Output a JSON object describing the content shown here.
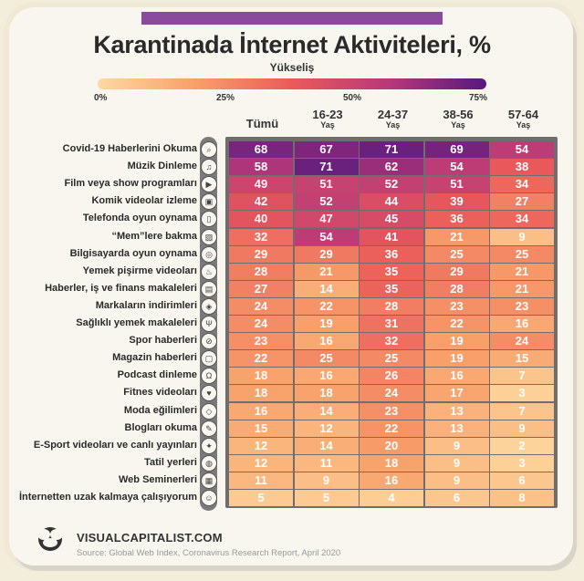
{
  "chart_data": {
    "type": "heatmap",
    "title": "Karantinada İnternet Aktiviteleri, %",
    "legend": {
      "title": "Yükseliş",
      "ticks": [
        "0%",
        "25%",
        "50%",
        "75%"
      ],
      "range": [
        0,
        75
      ],
      "colors": [
        "#fdd9a0",
        "#f8a06a",
        "#ea5a5a",
        "#b8387a",
        "#55197e"
      ]
    },
    "columns": [
      {
        "label": "Tümü",
        "sub": ""
      },
      {
        "label": "16-23",
        "sub": "Yaş"
      },
      {
        "label": "24-37",
        "sub": "Yaş"
      },
      {
        "label": "38-56",
        "sub": "Yaş"
      },
      {
        "label": "57-64",
        "sub": "Yaş"
      }
    ],
    "rows": [
      {
        "label": "Covid-19 Haberlerini Okuma",
        "icon": "search-icon",
        "values": [
          68,
          67,
          71,
          69,
          54
        ]
      },
      {
        "label": "Müzik Dinleme",
        "icon": "music-icon",
        "values": [
          58,
          71,
          62,
          54,
          38
        ]
      },
      {
        "label": "Film veya show programları",
        "icon": "play-icon",
        "values": [
          49,
          51,
          52,
          51,
          34
        ]
      },
      {
        "label": "Komik videolar izleme",
        "icon": "video-icon",
        "values": [
          42,
          52,
          44,
          39,
          27
        ]
      },
      {
        "label": "Telefonda oyun oynama",
        "icon": "phone-game-icon",
        "values": [
          40,
          47,
          45,
          36,
          34
        ]
      },
      {
        "label": "“Mem”lere bakma",
        "icon": "image-icon",
        "values": [
          32,
          54,
          41,
          21,
          9
        ]
      },
      {
        "label": "Bilgisayarda oyun oynama",
        "icon": "mouse-icon",
        "values": [
          29,
          29,
          36,
          25,
          25
        ]
      },
      {
        "label": "Yemek pişirme videoları",
        "icon": "chef-icon",
        "values": [
          28,
          21,
          35,
          29,
          21
        ]
      },
      {
        "label": "Haberler, iş ve finans makaleleri",
        "icon": "newspaper-icon",
        "values": [
          27,
          14,
          35,
          28,
          21
        ]
      },
      {
        "label": "Markaların indirimleri",
        "icon": "tag-icon",
        "values": [
          24,
          22,
          28,
          23,
          23
        ]
      },
      {
        "label": "Sağlıklı yemek makaleleri",
        "icon": "cutlery-icon",
        "values": [
          24,
          19,
          31,
          22,
          16
        ]
      },
      {
        "label": "Spor haberleri",
        "icon": "ball-icon",
        "values": [
          23,
          16,
          32,
          19,
          24
        ]
      },
      {
        "label": "Magazin haberleri",
        "icon": "magazine-icon",
        "values": [
          22,
          25,
          25,
          19,
          15
        ]
      },
      {
        "label": "Podcast dinleme",
        "icon": "headphones-icon",
        "values": [
          18,
          16,
          26,
          16,
          7
        ]
      },
      {
        "label": "Fitnes videoları",
        "icon": "fitness-icon",
        "values": [
          18,
          18,
          24,
          17,
          3
        ]
      },
      {
        "label": "Moda eğilimleri",
        "icon": "fashion-icon",
        "values": [
          16,
          14,
          23,
          13,
          7
        ]
      },
      {
        "label": "Blogları okuma",
        "icon": "blog-icon",
        "values": [
          15,
          12,
          22,
          13,
          9
        ]
      },
      {
        "label": "E-Sport videoları ve canlı yayınları",
        "icon": "esport-icon",
        "values": [
          12,
          14,
          20,
          9,
          2
        ]
      },
      {
        "label": "Tatil yerleri",
        "icon": "globe-icon",
        "values": [
          12,
          11,
          18,
          9,
          3
        ]
      },
      {
        "label": "Web Seminerleri",
        "icon": "webinar-icon",
        "values": [
          11,
          9,
          16,
          9,
          6
        ]
      },
      {
        "label": "İnternetten uzak kalmaya çalışıyorum",
        "icon": "meditation-icon",
        "values": [
          5,
          5,
          4,
          6,
          8
        ]
      }
    ]
  },
  "footer": {
    "brand": "VISUALCAPITALIST.COM",
    "source": "Source: Global Web Index, Coronavirus Research Report, April 2020"
  },
  "colors": {
    "topbar": "#8b4a9c"
  }
}
